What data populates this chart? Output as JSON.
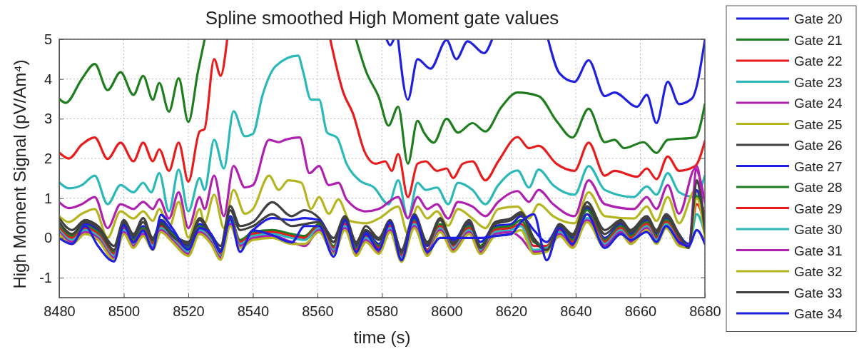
{
  "chart_data": {
    "type": "line",
    "title": "Spline smoothed High Moment gate values",
    "xlabel": "time (s)",
    "ylabel": "High Moment Signal (pV/Am⁴)",
    "xlim": [
      8480,
      8680
    ],
    "ylim": [
      -1.5,
      5
    ],
    "xticks": [
      8480,
      8500,
      8520,
      8540,
      8560,
      8580,
      8600,
      8620,
      8640,
      8660,
      8680
    ],
    "yticks": [
      -1,
      0,
      1,
      2,
      3,
      4,
      5
    ],
    "grid": true,
    "legend": "right",
    "series": [
      {
        "name": "Gate 20",
        "color": "#1f1fe0",
        "x": [
          8581.5,
          8582.5,
          8583.5,
          8584,
          8585,
          8588,
          8591,
          8595,
          8600,
          8603,
          8606.5,
          8611.6,
          8614,
          8615,
          8631,
          8631.5,
          8635,
          8639.6,
          8644,
          8649,
          8652,
          8659,
          8662,
          8665,
          8668.5,
          8672,
          8676,
          8680
        ],
        "values": [
          4.98,
          4.85,
          4.98,
          null,
          4.98,
          3.48,
          4.5,
          4.26,
          4.98,
          4.5,
          4.95,
          4.65,
          4.98,
          null,
          null,
          4.98,
          4.14,
          3.93,
          4.47,
          3.57,
          3.66,
          3.3,
          3.6,
          2.89,
          3.93,
          3.37,
          3.51,
          4.98
        ]
      },
      {
        "name": "Gate 21",
        "color": "#1e7e1e",
        "x": [
          8480,
          8482,
          8487,
          8491,
          8495,
          8499,
          8503,
          8506,
          8509,
          8511,
          8514,
          8517,
          8520,
          8523,
          8525,
          8526,
          8571,
          8572,
          8575,
          8579,
          8582,
          8585,
          8588,
          8591,
          8593,
          8596,
          8600,
          8603.5,
          8608,
          8612,
          8617,
          8622,
          8628.5,
          8634,
          8639,
          8644,
          8649,
          8652,
          8655,
          8661,
          8665,
          8668.5,
          8677,
          8680
        ],
        "values": [
          3.5,
          3.4,
          4.0,
          4.38,
          3.72,
          4.17,
          3.6,
          4.08,
          3.48,
          3.9,
          3.18,
          4.02,
          2.92,
          4.2,
          4.98,
          null,
          null,
          4.98,
          4.2,
          3.54,
          2.83,
          3.3,
          1.87,
          2.95,
          2.65,
          2.4,
          3.0,
          2.65,
          2.89,
          2.68,
          3.3,
          3.66,
          3.57,
          2.95,
          2.53,
          3.25,
          2.41,
          2.47,
          2.26,
          2.41,
          2.14,
          2.47,
          2.53,
          3.37
        ]
      },
      {
        "name": "Gate 22",
        "color": "#e81c1c",
        "x": [
          8480,
          8483,
          8487,
          8491,
          8495,
          8499,
          8503,
          8506,
          8509,
          8511,
          8514,
          8517,
          8520,
          8523.5,
          8525,
          8528,
          8530,
          8532,
          8533,
          8563,
          8564,
          8568,
          8571,
          8574.6,
          8578,
          8581,
          8583,
          8585,
          8588,
          8591,
          8593.5,
          8597,
          8600,
          8602,
          8605,
          8608,
          8612,
          8616,
          8622,
          8625.5,
          8628.5,
          8634,
          8639.6,
          8644,
          8649,
          8652,
          8659,
          8662,
          8665,
          8668.5,
          8672,
          8677,
          8680
        ],
        "values": [
          2.15,
          2.0,
          2.35,
          2.53,
          1.99,
          2.4,
          1.93,
          2.4,
          1.93,
          2.23,
          1.69,
          2.4,
          1.42,
          2.68,
          2.74,
          4.5,
          4.08,
          4.98,
          null,
          null,
          4.98,
          3.66,
          3.13,
          2.17,
          1.87,
          1.93,
          1.69,
          2.11,
          1.03,
          1.87,
          1.93,
          1.69,
          1.75,
          1.51,
          1.87,
          1.93,
          1.45,
          1.93,
          2.54,
          2.26,
          2.32,
          1.87,
          1.69,
          2.4,
          1.57,
          1.69,
          1.54,
          1.75,
          1.48,
          2.05,
          1.69,
          1.81,
          2.44
        ]
      },
      {
        "name": "Gate 23",
        "color": "#2ab8b8",
        "x": [
          8480,
          8483,
          8487,
          8491,
          8495,
          8499,
          8503,
          8506,
          8508.5,
          8511,
          8514,
          8517,
          8520,
          8523.5,
          8525,
          8528,
          8531,
          8534,
          8537.5,
          8540,
          8543,
          8547,
          8554,
          8555.5,
          8558,
          8560.5,
          8563,
          8566,
          8569,
          8573,
          8577.5,
          8582,
          8585,
          8588,
          8591,
          8593.5,
          8597,
          8600.5,
          8603.5,
          8608,
          8612,
          8616,
          8622,
          8625.5,
          8628.5,
          8633,
          8639.6,
          8644,
          8649,
          8658,
          8662,
          8665,
          8668.5,
          8672,
          8677,
          8680
        ],
        "values": [
          1.4,
          1.25,
          1.33,
          1.57,
          0.85,
          1.33,
          1.15,
          1.39,
          1.15,
          1.63,
          0.67,
          1.72,
          0.67,
          1.51,
          1.21,
          2.47,
          1.75,
          3.19,
          2.56,
          2.62,
          3.6,
          4.32,
          4.59,
          4.2,
          3.48,
          3.48,
          2.65,
          2.53,
          1.87,
          1.45,
          1.27,
          0.85,
          1.45,
          0.49,
          1.39,
          1.21,
          1.27,
          0.85,
          1.39,
          1.21,
          0.85,
          1.33,
          1.7,
          1.27,
          1.72,
          1.33,
          1.09,
          1.81,
          1.21,
          1.03,
          1.3,
          1.09,
          1.63,
          1.15,
          1.03,
          1.57
        ]
      },
      {
        "name": "Gate 24",
        "color": "#b020b0",
        "x": [
          8480,
          8483,
          8487,
          8491,
          8495,
          8499,
          8503,
          8506,
          8509,
          8511,
          8514,
          8517,
          8520,
          8523.5,
          8525,
          8528,
          8531,
          8534,
          8537.5,
          8540,
          8545,
          8548,
          8550,
          8554.5,
          8557.5,
          8560.5,
          8563.5,
          8566.5,
          8569,
          8575,
          8579,
          8585,
          8588,
          8591,
          8594,
          8597,
          8600.5,
          8603.5,
          8608,
          8612,
          8616,
          8622,
          8625.5,
          8628.5,
          8633,
          8639.6,
          8644,
          8649,
          8658,
          8662,
          8665,
          8668.5,
          8672,
          8677,
          8680
        ],
        "values": [
          0.9,
          0.75,
          0.85,
          1.03,
          0.25,
          0.85,
          0.73,
          0.91,
          0.73,
          0.97,
          0.49,
          1.15,
          0.25,
          1.03,
          0.73,
          1.57,
          0.55,
          1.81,
          1.27,
          1.33,
          2.47,
          2.41,
          2.47,
          2.53,
          1.63,
          1.81,
          1.33,
          1.39,
          0.97,
          0.67,
          0.73,
          1.03,
          0.5,
          1.03,
          0.73,
          0.85,
          0.49,
          0.91,
          0.79,
          0.55,
          0.91,
          1.18,
          0.91,
          1.21,
          0.85,
          0.55,
          1.45,
          0.85,
          0.73,
          1.03,
          0.73,
          1.33,
          0.61,
          1.75,
          0.91
        ]
      },
      {
        "name": "Gate 25",
        "color": "#b5b520",
        "x": [
          8480,
          8483,
          8487,
          8491,
          8495,
          8499,
          8503,
          8506,
          8509,
          8511,
          8514,
          8517,
          8520,
          8523.5,
          8525,
          8528,
          8531,
          8534,
          8537.5,
          8540,
          8545,
          8548,
          8551,
          8555,
          8558,
          8560.5,
          8563.5,
          8566.5,
          8570,
          8575,
          8579,
          8585,
          8588,
          8591,
          8594,
          8597,
          8600.5,
          8603.5,
          8608,
          8612,
          8616,
          8622,
          8625.5,
          8628.5,
          8633,
          8639.6,
          8644,
          8649,
          8658,
          8662,
          8665,
          8668.5,
          8672,
          8677,
          8680
        ],
        "values": [
          0.55,
          0.4,
          0.61,
          0.73,
          0.01,
          0.67,
          0.49,
          0.67,
          0.43,
          0.73,
          0.25,
          0.91,
          0.01,
          0.73,
          0.37,
          1.09,
          0.25,
          1.21,
          0.61,
          0.73,
          1.57,
          1.21,
          1.45,
          1.39,
          0.73,
          1.03,
          0.61,
          0.97,
          0.43,
          0.37,
          0.49,
          0.79,
          0.1,
          0.79,
          0.49,
          0.67,
          0.31,
          0.73,
          0.49,
          0.25,
          0.73,
          0.79,
          0.49,
          0.85,
          0.55,
          0.37,
          1.15,
          0.55,
          0.49,
          0.79,
          0.43,
          1.03,
          0.37,
          1.2,
          0.5
        ]
      },
      {
        "name": "Gate 26",
        "color": "#404040",
        "x": [
          8480,
          8484,
          8488,
          8492,
          8497,
          8500,
          8503,
          8506,
          8509,
          8511.5,
          8515,
          8520,
          8523.5,
          8527,
          8530,
          8533,
          8536,
          8540,
          8546,
          8552,
          8556,
          8560.5,
          8565,
          8568.5,
          8572,
          8575,
          8579,
          8582.5,
          8586,
          8590,
          8594,
          8598,
          8602,
          8607,
          8610.5,
          8615,
          8620,
          8623,
          8627,
          8631,
          8635,
          8639,
          8643.5,
          8649,
          8654,
          8657,
          8662,
          8665,
          8668,
          8672,
          8675,
          8677.5,
          8680
        ],
        "values": [
          0.5,
          0.2,
          0.45,
          0.3,
          -0.2,
          0.45,
          0.1,
          0.5,
          0.0,
          0.4,
          0.1,
          -0.1,
          0.5,
          0.1,
          -0.2,
          0.8,
          0.3,
          0.4,
          0.9,
          0.55,
          0.7,
          0.5,
          0.0,
          0.55,
          -0.1,
          0.3,
          0.0,
          0.45,
          -0.3,
          0.6,
          -0.1,
          0.5,
          -0.1,
          0.45,
          -0.2,
          0.4,
          0.5,
          0.65,
          0.0,
          -0.25,
          0.35,
          0.1,
          0.9,
          0.2,
          0.45,
          0.2,
          0.55,
          0.2,
          0.6,
          0.1,
          -0.2,
          1.45,
          0.2
        ]
      },
      {
        "name": "Gate 27",
        "color": "#1f1fe0",
        "x": [
          8480,
          8484,
          8488,
          8492,
          8497,
          8500,
          8503,
          8506,
          8509,
          8511.5,
          8515,
          8520,
          8523.5,
          8527,
          8530,
          8533,
          8536,
          8540,
          8546,
          8552,
          8556,
          8560.5,
          8565,
          8568.5,
          8572,
          8575,
          8579,
          8582.5,
          8586,
          8590,
          8594,
          8598,
          8602,
          8607,
          8610.5,
          8615,
          8620,
          8623,
          8627,
          8631,
          8635,
          8639,
          8643.5,
          8649,
          8654,
          8657,
          8662,
          8665,
          8668,
          8672,
          8675,
          8677.5,
          8680
        ],
        "values": [
          0.2,
          0.0,
          0.35,
          0.2,
          -0.4,
          0.35,
          0.0,
          0.3,
          -0.15,
          0.45,
          0.15,
          -0.2,
          0.35,
          0.1,
          -0.3,
          0.55,
          -0.1,
          0.2,
          0.5,
          0.45,
          0.5,
          0.45,
          -0.1,
          0.45,
          -0.2,
          0.15,
          -0.15,
          0.4,
          -0.45,
          0.5,
          -0.2,
          0.3,
          -0.05,
          0.35,
          -0.1,
          0.3,
          0.35,
          0.55,
          0.2,
          -0.1,
          0.3,
          0.0,
          0.75,
          0.0,
          0.35,
          0.1,
          0.45,
          0.1,
          0.5,
          0.05,
          -0.15,
          1.2,
          0.1
        ]
      },
      {
        "name": "Gate 28",
        "color": "#1e7e1e",
        "x": [
          8480,
          8484,
          8488,
          8492,
          8497,
          8500,
          8503,
          8506,
          8509,
          8511.5,
          8515,
          8520,
          8523.5,
          8527,
          8530,
          8533,
          8536,
          8540,
          8546,
          8552,
          8556,
          8560.5,
          8565,
          8568.5,
          8572,
          8575,
          8579,
          8582.5,
          8586,
          8590,
          8594,
          8598,
          8602,
          8607,
          8610.5,
          8615,
          8620,
          8623,
          8627,
          8631,
          8635,
          8639,
          8643.5,
          8649,
          8654,
          8657,
          8662,
          8665,
          8668,
          8672,
          8675,
          8677.5,
          8680
        ],
        "values": [
          0.3,
          0.05,
          0.3,
          0.15,
          -0.35,
          0.3,
          -0.05,
          0.25,
          -0.1,
          0.35,
          0.1,
          -0.25,
          0.3,
          0.05,
          -0.35,
          0.5,
          -0.05,
          0.15,
          0.2,
          0.1,
          0.05,
          0.35,
          -0.2,
          0.4,
          -0.25,
          0.1,
          -0.2,
          0.35,
          -0.4,
          0.45,
          -0.3,
          0.35,
          -0.15,
          0.3,
          -0.2,
          0.25,
          0.3,
          0.45,
          -0.1,
          -0.2,
          0.25,
          -0.05,
          0.7,
          -0.05,
          0.3,
          0.05,
          0.4,
          0.05,
          0.45,
          0.0,
          -0.2,
          1.05,
          0.6
        ]
      },
      {
        "name": "Gate 29",
        "color": "#e81c1c",
        "x": [
          8480,
          8484,
          8488,
          8492,
          8497,
          8500,
          8503,
          8506,
          8509,
          8511.5,
          8515,
          8520,
          8523.5,
          8527,
          8530,
          8533,
          8536,
          8540,
          8546,
          8552,
          8556,
          8560.5,
          8565,
          8568.5,
          8572,
          8575,
          8579,
          8582.5,
          8586,
          8590,
          8594,
          8598,
          8602,
          8607,
          8610.5,
          8615,
          8620,
          8623,
          8627,
          8631,
          8635,
          8639,
          8643.5,
          8649,
          8654,
          8657,
          8662,
          8665,
          8668,
          8672,
          8675,
          8677.5,
          8680
        ],
        "values": [
          0.25,
          0.0,
          0.25,
          0.1,
          -0.4,
          0.25,
          -0.1,
          0.2,
          -0.15,
          0.3,
          0.05,
          -0.3,
          0.25,
          0.0,
          -0.4,
          0.45,
          -0.1,
          0.1,
          0.15,
          0.05,
          0.0,
          0.3,
          -0.25,
          0.35,
          -0.3,
          0.05,
          -0.25,
          0.3,
          -0.45,
          0.4,
          -0.3,
          0.3,
          -0.2,
          0.25,
          -0.25,
          0.2,
          0.25,
          0.35,
          -0.2,
          -0.2,
          0.2,
          -0.1,
          0.6,
          -0.1,
          0.25,
          0.0,
          0.35,
          0.0,
          0.4,
          -0.05,
          -0.2,
          0.85,
          0.3
        ]
      },
      {
        "name": "Gate 30",
        "color": "#2ab8b8",
        "x": [
          8480,
          8484,
          8488,
          8492,
          8497,
          8500,
          8503,
          8506,
          8509,
          8511.5,
          8515,
          8520,
          8523.5,
          8527,
          8530,
          8533,
          8536,
          8540,
          8546,
          8552,
          8556,
          8560.5,
          8565,
          8568.5,
          8572,
          8575,
          8579,
          8582.5,
          8586,
          8590,
          8594,
          8598,
          8602,
          8607,
          8610.5,
          8615,
          8620,
          8623,
          8627,
          8631,
          8635,
          8639,
          8643.5,
          8649,
          8654,
          8657,
          8662,
          8665,
          8668,
          8672,
          8675,
          8677.5,
          8680
        ],
        "values": [
          0.2,
          -0.05,
          0.2,
          0.05,
          -0.45,
          0.2,
          -0.15,
          0.15,
          -0.2,
          0.25,
          0.0,
          -0.35,
          0.2,
          -0.05,
          -0.45,
          0.4,
          -0.15,
          0.05,
          0.1,
          0.0,
          -0.05,
          0.25,
          -0.3,
          0.3,
          -0.35,
          0.0,
          -0.3,
          0.25,
          -0.5,
          0.35,
          -0.35,
          0.25,
          -0.25,
          0.2,
          -0.3,
          0.15,
          0.2,
          0.3,
          -0.3,
          -0.25,
          0.15,
          -0.15,
          0.5,
          -0.15,
          0.2,
          -0.05,
          0.3,
          -0.05,
          0.35,
          -0.1,
          -0.2,
          0.6,
          0.1
        ]
      },
      {
        "name": "Gate 31",
        "color": "#b020b0",
        "x": [
          8480,
          8484,
          8488,
          8492,
          8497,
          8500,
          8503,
          8506,
          8509,
          8511.5,
          8515,
          8520,
          8523.5,
          8527,
          8530,
          8533,
          8536,
          8540,
          8546,
          8552,
          8556,
          8560.5,
          8565,
          8568.5,
          8572,
          8575,
          8579,
          8582.5,
          8586,
          8590,
          8594,
          8598,
          8602,
          8607,
          8610.5,
          8615,
          8620,
          8623,
          8627,
          8631,
          8635,
          8639,
          8643.5,
          8649,
          8654,
          8657,
          8662,
          8665,
          8668,
          8672,
          8675,
          8677.5,
          8680
        ],
        "values": [
          0.15,
          -0.1,
          0.15,
          0.0,
          -0.5,
          0.15,
          -0.2,
          0.1,
          -0.25,
          0.2,
          -0.05,
          -0.4,
          0.15,
          -0.1,
          -0.5,
          0.35,
          -0.2,
          0.0,
          0.05,
          -0.1,
          -0.2,
          0.2,
          -0.35,
          0.25,
          -0.4,
          -0.05,
          -0.35,
          0.2,
          -0.55,
          0.3,
          -0.4,
          0.2,
          -0.3,
          0.15,
          -0.35,
          0.1,
          0.15,
          0.0,
          -0.35,
          -0.3,
          0.1,
          -0.2,
          0.45,
          -0.2,
          0.15,
          -0.1,
          0.25,
          -0.1,
          0.3,
          -0.15,
          -0.2,
          1.8,
          0.0
        ]
      },
      {
        "name": "Gate 32",
        "color": "#b5b520",
        "x": [
          8480,
          8484,
          8488,
          8492,
          8497,
          8500,
          8503,
          8506,
          8509,
          8511.5,
          8515,
          8520,
          8523.5,
          8527,
          8530,
          8533,
          8536,
          8540,
          8546,
          8552,
          8556,
          8560.5,
          8565,
          8568.5,
          8572,
          8575,
          8579,
          8582.5,
          8586,
          8590,
          8594,
          8598,
          8602,
          8607,
          8610.5,
          8615,
          8620,
          8623,
          8627,
          8631,
          8635,
          8639,
          8643.5,
          8649,
          8654,
          8657,
          8662,
          8665,
          8668,
          8672,
          8675,
          8677.5,
          8680
        ],
        "values": [
          0.1,
          -0.15,
          0.1,
          -0.05,
          -0.55,
          0.1,
          -0.25,
          0.05,
          -0.3,
          0.15,
          -0.1,
          -0.45,
          0.1,
          -0.15,
          -0.55,
          0.3,
          -0.25,
          -0.05,
          0.0,
          -0.15,
          -0.15,
          0.15,
          -0.4,
          0.2,
          -0.45,
          -0.1,
          -0.4,
          0.15,
          -0.6,
          0.25,
          -0.45,
          0.15,
          -0.35,
          0.1,
          -0.4,
          0.05,
          0.1,
          0.2,
          -0.4,
          -0.35,
          0.05,
          -0.25,
          0.4,
          -0.25,
          0.1,
          -0.15,
          0.2,
          -0.15,
          0.25,
          -0.2,
          -0.25,
          1.0,
          0.0
        ]
      },
      {
        "name": "Gate 33",
        "color": "#404040",
        "x": [
          8480,
          8484,
          8488,
          8492,
          8497,
          8500,
          8503,
          8506,
          8509,
          8511.5,
          8515,
          8520,
          8523.5,
          8527,
          8530,
          8533,
          8536,
          8540,
          8546,
          8552,
          8556,
          8560.5,
          8565,
          8568.5,
          8572,
          8575,
          8579,
          8582.5,
          8586,
          8590,
          8594,
          8598,
          8602,
          8607,
          8610.5,
          8615,
          8620,
          8623,
          8627,
          8631,
          8635,
          8639,
          8643.5,
          8649,
          8654,
          8657,
          8662,
          8665,
          8668,
          8672,
          8675,
          8677.5,
          8680
        ],
        "values": [
          0.4,
          0.1,
          0.4,
          0.25,
          -0.3,
          0.4,
          0.05,
          0.4,
          -0.05,
          0.35,
          0.05,
          -0.15,
          0.45,
          0.05,
          -0.3,
          0.7,
          0.2,
          0.3,
          0.6,
          0.3,
          0.35,
          0.4,
          -0.1,
          0.5,
          -0.15,
          0.2,
          -0.05,
          0.4,
          -0.35,
          0.55,
          -0.15,
          0.45,
          -0.15,
          0.4,
          -0.25,
          0.35,
          0.45,
          0.6,
          -0.05,
          -0.3,
          0.3,
          0.05,
          0.8,
          0.1,
          0.4,
          0.15,
          0.5,
          0.15,
          0.55,
          0.05,
          -0.25,
          1.4,
          0.15
        ]
      },
      {
        "name": "Gate 34",
        "color": "#1f1fe0",
        "x": [
          8480,
          8484,
          8488,
          8492,
          8497,
          8500,
          8503,
          8506,
          8509,
          8511.5,
          8515,
          8520,
          8523.5,
          8527,
          8530,
          8533,
          8536,
          8540,
          8546,
          8552,
          8556,
          8560.5,
          8565,
          8568.5,
          8572,
          8575,
          8579,
          8582.5,
          8586,
          8590,
          8594,
          8598,
          8602,
          8607,
          8610.5,
          8615,
          8620,
          8623,
          8627,
          8631,
          8635,
          8639,
          8643.5,
          8649,
          8654,
          8657,
          8662,
          8665,
          8668,
          8672,
          8675,
          8677.5,
          8680
        ],
        "values": [
          0.0,
          -0.15,
          0.3,
          -0.2,
          -0.59,
          0.31,
          -0.11,
          0.19,
          -0.29,
          0.58,
          0.25,
          -0.29,
          0.25,
          0.1,
          -0.35,
          0.49,
          -0.35,
          0.19,
          0.07,
          -0.11,
          0.3,
          0.3,
          -0.47,
          0.45,
          -0.35,
          0.1,
          -0.3,
          0.4,
          -0.56,
          0.55,
          -0.35,
          0.0,
          0.0,
          0.0,
          0.0,
          0.05,
          0.1,
          0.4,
          0.6,
          -0.56,
          0.25,
          -0.15,
          0.6,
          -0.25,
          0.1,
          -0.05,
          0.15,
          -0.1,
          0.3,
          -0.1,
          -0.2,
          0.2,
          -0.15
        ]
      }
    ]
  }
}
